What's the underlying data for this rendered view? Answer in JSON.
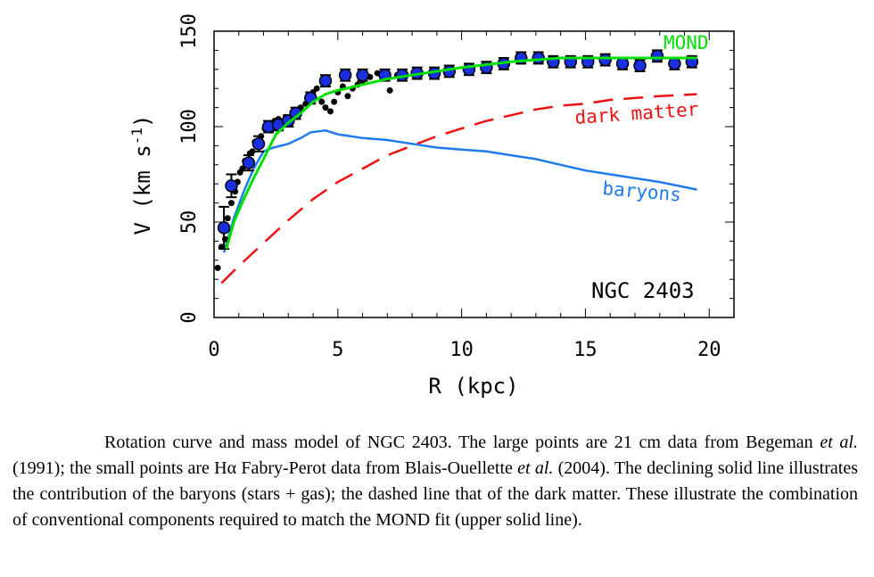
{
  "chart_data": {
    "type": "line",
    "title": "",
    "xlabel": "R (kpc)",
    "ylabel": "V (km s^-1)",
    "xlim": [
      0,
      21
    ],
    "ylim": [
      0,
      150
    ],
    "x_ticks": [
      0,
      5,
      10,
      15,
      20
    ],
    "y_ticks": [
      0,
      50,
      100,
      150
    ],
    "grid": false,
    "annotations": {
      "galaxy": "NGC 2403",
      "mond": "MOND",
      "dark_matter": "dark matter",
      "baryons": "baryons"
    },
    "colors": {
      "mond": "#00e000",
      "dark_matter": "#ee1111",
      "baryons": "#1e7bef",
      "large_points": "#1a2fe0",
      "small_points": "#000000"
    },
    "series": [
      {
        "style": "solid",
        "values_xy": [
          [
            0.5,
            36
          ],
          [
            0.8,
            50
          ],
          [
            1.2,
            62
          ],
          [
            1.6,
            73
          ],
          [
            2.0,
            83
          ],
          [
            2.5,
            96
          ],
          [
            3.0,
            102
          ],
          [
            3.5,
            107
          ],
          [
            4.0,
            113
          ],
          [
            4.5,
            117
          ],
          [
            5.0,
            119
          ],
          [
            6.0,
            122
          ],
          [
            7.0,
            125
          ],
          [
            8.0,
            127
          ],
          [
            10.0,
            131
          ],
          [
            12.0,
            134
          ],
          [
            14.0,
            136
          ],
          [
            16.0,
            136
          ],
          [
            18.0,
            136
          ],
          [
            19.5,
            136
          ]
        ]
      },
      {
        "style": "dashed",
        "values_xy": [
          [
            0.3,
            18
          ],
          [
            1,
            27
          ],
          [
            2,
            39
          ],
          [
            3,
            51
          ],
          [
            4,
            62
          ],
          [
            5,
            71
          ],
          [
            6,
            78
          ],
          [
            7,
            85
          ],
          [
            8,
            90
          ],
          [
            9,
            95
          ],
          [
            10,
            99
          ],
          [
            11,
            103
          ],
          [
            12,
            106
          ],
          [
            13,
            109
          ],
          [
            14,
            111
          ],
          [
            15,
            112
          ],
          [
            16,
            114
          ],
          [
            17,
            115
          ],
          [
            18,
            116
          ],
          [
            19.5,
            117
          ]
        ]
      },
      {
        "style": "solid",
        "values_xy": [
          [
            0.4,
            34
          ],
          [
            0.8,
            52
          ],
          [
            1.2,
            66
          ],
          [
            1.6,
            78
          ],
          [
            2.0,
            87
          ],
          [
            2.4,
            89
          ],
          [
            3.0,
            91
          ],
          [
            3.5,
            94
          ],
          [
            3.9,
            97
          ],
          [
            4.5,
            98
          ],
          [
            5.0,
            96
          ],
          [
            6.0,
            94
          ],
          [
            7.0,
            93
          ],
          [
            8.0,
            91
          ],
          [
            9.0,
            89
          ],
          [
            10.0,
            88
          ],
          [
            11.0,
            87
          ],
          [
            12.0,
            85
          ],
          [
            13.0,
            83
          ],
          [
            14.0,
            80
          ],
          [
            15.0,
            77
          ],
          [
            16.0,
            75
          ],
          [
            17.0,
            73
          ],
          [
            18.0,
            71
          ],
          [
            19.5,
            67
          ]
        ]
      }
    ],
    "large_points": {
      "x": [
        0.4,
        0.7,
        1.4,
        1.8,
        2.2,
        2.6,
        3.0,
        3.3,
        3.9,
        4.5,
        5.3,
        6.0,
        6.9,
        7.6,
        8.2,
        8.9,
        9.5,
        10.3,
        11.0,
        11.7,
        12.4,
        13.1,
        13.7,
        14.4,
        15.1,
        15.8,
        16.5,
        17.2,
        17.9,
        18.6,
        19.3
      ],
      "y": [
        47,
        69,
        81,
        91,
        100,
        101,
        103,
        107,
        115,
        124,
        127,
        127,
        127,
        127,
        128,
        128,
        129,
        130,
        131,
        133,
        136,
        136,
        134,
        134,
        134,
        135,
        133,
        132,
        137,
        133,
        134
      ],
      "yerr": [
        11,
        6,
        4,
        4,
        3,
        3,
        3,
        3,
        3,
        3,
        3,
        3,
        3,
        3,
        3,
        3,
        3,
        3,
        3,
        3,
        3,
        3,
        3,
        3,
        3,
        3,
        3,
        3,
        3,
        3,
        3
      ]
    },
    "small_points": {
      "x": [
        0.15,
        0.3,
        0.45,
        0.55,
        0.7,
        0.85,
        0.95,
        1.05,
        1.15,
        1.25,
        1.35,
        1.45,
        1.55,
        1.65,
        1.8,
        1.9,
        2.05,
        2.15,
        2.3,
        2.45,
        2.6,
        2.75,
        2.9,
        3.05,
        3.2,
        3.35,
        3.5,
        3.7,
        3.85,
        4.0,
        4.15,
        4.35,
        4.5,
        4.7,
        4.85,
        5.0,
        5.2,
        5.4,
        5.6,
        5.8,
        6.0,
        6.3,
        6.6,
        6.9,
        7.1,
        7.4
      ],
      "y": [
        26,
        37,
        41,
        52,
        60,
        66,
        71,
        76,
        78,
        82,
        80,
        86,
        87,
        92,
        90,
        95,
        99,
        101,
        98,
        103,
        104,
        102,
        105,
        104,
        106,
        108,
        110,
        112,
        115,
        118,
        120,
        113,
        110,
        108,
        113,
        118,
        121,
        116,
        120,
        122,
        124,
        126,
        128,
        126,
        119,
        127
      ]
    }
  },
  "caption": {
    "part1": "Rotation curve and mass model of NGC 2403. The large points are 21 cm data from Begeman ",
    "etal1": "et al.",
    "part2": " (1991); the small points are Hα Fabry-Perot data from Blais-Ouellette ",
    "etal2": "et al.",
    "part3": " (2004). The declining solid line illustrates the contribution of the baryons (stars + gas); the dashed line that of the dark matter. These illustrate the combination of conventional components required to match the MOND fit (upper solid line)."
  }
}
